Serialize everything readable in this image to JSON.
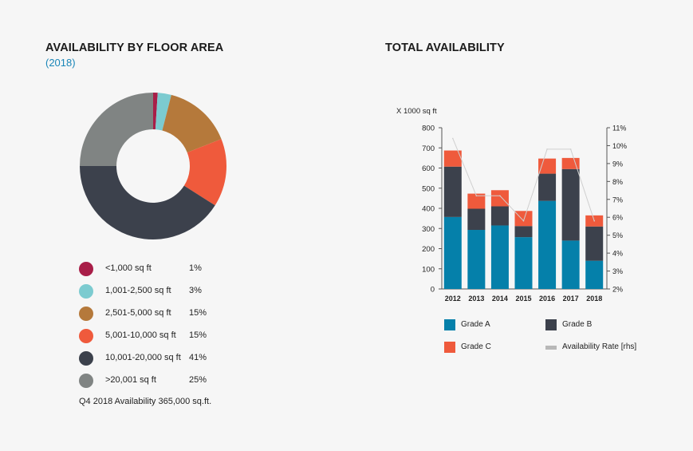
{
  "colors": {
    "grade_a": "#0580aa",
    "grade_b": "#3c414c",
    "grade_c": "#ef5a3c",
    "rate_line": "#cfcfcf",
    "axis": "#555555"
  },
  "left_panel": {
    "title": "AVAILABILITY BY FLOOR AREA",
    "subtitle": "(2018)",
    "footnote": "Q4 2018 Availability 365,000 sq.ft."
  },
  "right_panel": {
    "title": "TOTAL AVAILABILITY"
  },
  "chart_data": [
    {
      "type": "pie",
      "variant": "donut",
      "title": "AVAILABILITY BY FLOOR AREA",
      "subtitle": "(2018)",
      "slices": [
        {
          "label": "<1,000 sq ft",
          "value": 1,
          "pct_label": "1%",
          "color": "#a81e48"
        },
        {
          "label": "1,001-2,500 sq ft",
          "value": 3,
          "pct_label": "3%",
          "color": "#7ccbd0"
        },
        {
          "label": "2,501-5,000 sq ft",
          "value": 15,
          "pct_label": "15%",
          "color": "#b5793b"
        },
        {
          "label": "5,001-10,000 sq ft",
          "value": 15,
          "pct_label": "15%",
          "color": "#ef5a3c"
        },
        {
          "label": "10,001-20,000 sq ft",
          "value": 41,
          "pct_label": "41%",
          "color": "#3c414c"
        },
        {
          "label": ">20,001 sq ft",
          "value": 25,
          "pct_label": "25%",
          "color": "#808483"
        }
      ]
    },
    {
      "type": "bar",
      "stacked": true,
      "title": "TOTAL AVAILABILITY",
      "ylabel": "X 1000 sq ft",
      "ylim": [
        0,
        800
      ],
      "y_ticks": [
        "0",
        "100",
        "200",
        "300",
        "400",
        "500",
        "600",
        "700",
        "800"
      ],
      "y2lim": [
        2,
        11
      ],
      "y2_ticks": [
        "2%",
        "3%",
        "4%",
        "5%",
        "6%",
        "7%",
        "8%",
        "9%",
        "10%",
        "11%"
      ],
      "categories": [
        "2012",
        "2013",
        "2014",
        "2015",
        "2016",
        "2017",
        "2018"
      ],
      "series": [
        {
          "name": "Grade A",
          "values": [
            357,
            293,
            315,
            257,
            437,
            240,
            140
          ]
        },
        {
          "name": "Grade B",
          "values": [
            250,
            105,
            95,
            55,
            135,
            355,
            170
          ]
        },
        {
          "name": "Grade C",
          "values": [
            80,
            75,
            80,
            75,
            75,
            55,
            55
          ]
        }
      ],
      "line_series": {
        "name": "Availability Rate [rhs]",
        "values": [
          10.4,
          7.2,
          7.2,
          5.8,
          9.8,
          9.8,
          5.8
        ]
      },
      "legend": [
        "Grade A",
        "Grade B",
        "Grade C",
        "Availability Rate [rhs]"
      ]
    }
  ]
}
